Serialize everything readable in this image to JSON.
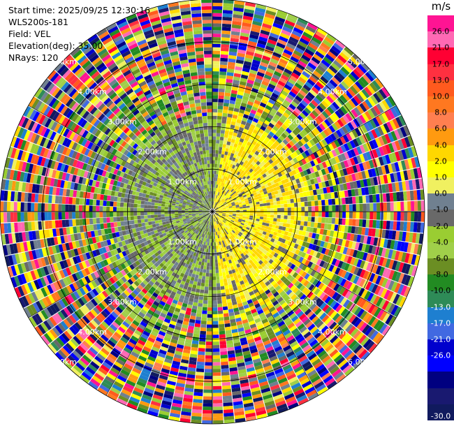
{
  "info": {
    "start_time": "Start time: 2025/09/25 12:30:16",
    "site": "WLS200s-181",
    "field": "Field: VEL",
    "elevation": "Elevation(deg): 35.00",
    "nrays": "NRays: 120"
  },
  "colorbar": {
    "unit": "m/s",
    "colors": [
      "#ff1493",
      "#ff69b4",
      "#ff0033",
      "#ff3040",
      "#ff5a1e",
      "#ff7820",
      "#ff7f50",
      "#ff9a10",
      "#ffd700",
      "#ffff00",
      "#f0f060",
      "#708090",
      "#696969",
      "#9acd32",
      "#a0cf4a",
      "#6b8e23",
      "#228b22",
      "#2e8b57",
      "#1e7fd0",
      "#4169e1",
      "#0000cd",
      "#0000ff",
      "#000080",
      "#191970",
      "#101a5e"
    ],
    "labels": [
      "26.0",
      "21.0",
      "17.0",
      "13.0",
      "10.0",
      "8.0",
      "6.0",
      "4.0",
      "2.0",
      "1.0",
      "0.0",
      "-1.0",
      "-2.0",
      "-4.0",
      "-6.0",
      "-8.0",
      "-10.0",
      "-13.0",
      "-17.0",
      "-21.0",
      "-26.0",
      "-30.0"
    ]
  },
  "chart_data": {
    "type": "heatmap",
    "projection": "polar-ppi",
    "field": "VEL",
    "units": "m/s",
    "nrays": 120,
    "max_range_km": 5.0,
    "range_ring_labels": [
      "1.00km",
      "2.00km",
      "3.00km",
      "4.00km",
      "5.00km"
    ],
    "range_rings_km": [
      1.0,
      2.0,
      3.0,
      4.0,
      5.0
    ],
    "color_levels": [
      -30.0,
      -26.0,
      -21.0,
      -17.0,
      -13.0,
      -10.0,
      -8.0,
      -6.0,
      -4.0,
      -2.0,
      -1.0,
      0.0,
      1.0,
      2.0,
      4.0,
      6.0,
      8.0,
      10.0,
      13.0,
      17.0,
      21.0,
      26.0
    ],
    "grid": true
  }
}
